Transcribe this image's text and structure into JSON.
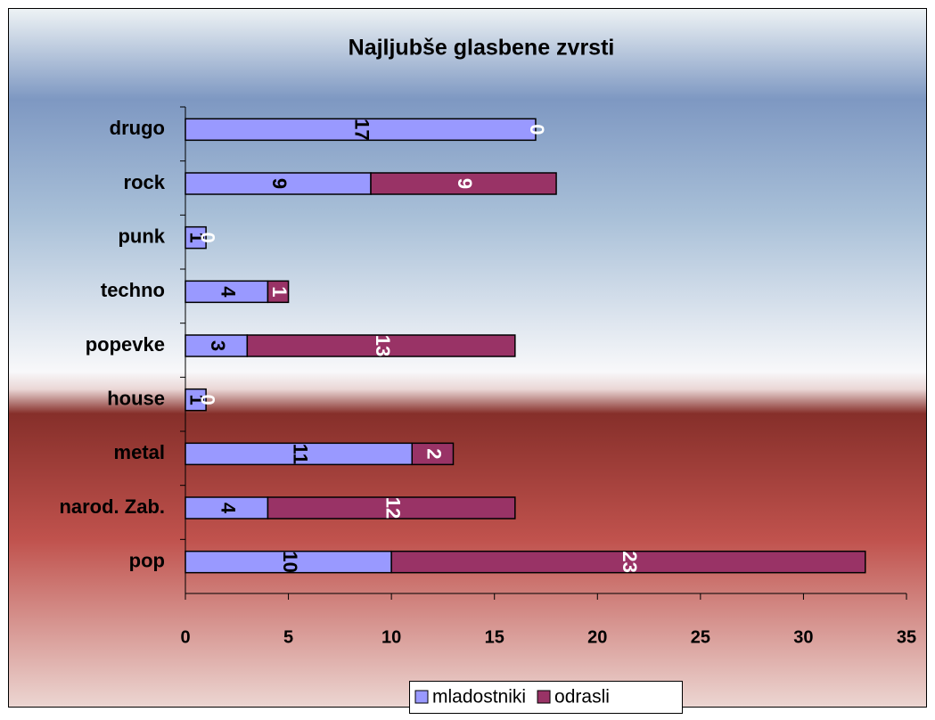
{
  "chart_data": {
    "type": "stacked-barh",
    "title": "Najljubše glasbene zvrsti",
    "categories": [
      "drugo",
      "rock",
      "punk",
      "techno",
      "popevke",
      "house",
      "metal",
      "narod. Zab.",
      "pop"
    ],
    "series": [
      {
        "name": "mladostniki",
        "color": "#9999ff",
        "values": [
          17,
          9,
          1,
          4,
          3,
          1,
          11,
          4,
          10
        ]
      },
      {
        "name": "odrasli",
        "color": "#993366",
        "values": [
          0,
          9,
          0,
          1,
          13,
          0,
          2,
          12,
          23
        ]
      }
    ],
    "xlim": [
      0,
      35
    ],
    "xticks": [
      0,
      5,
      10,
      15,
      20,
      25,
      30,
      35
    ],
    "legend": "bottom"
  }
}
